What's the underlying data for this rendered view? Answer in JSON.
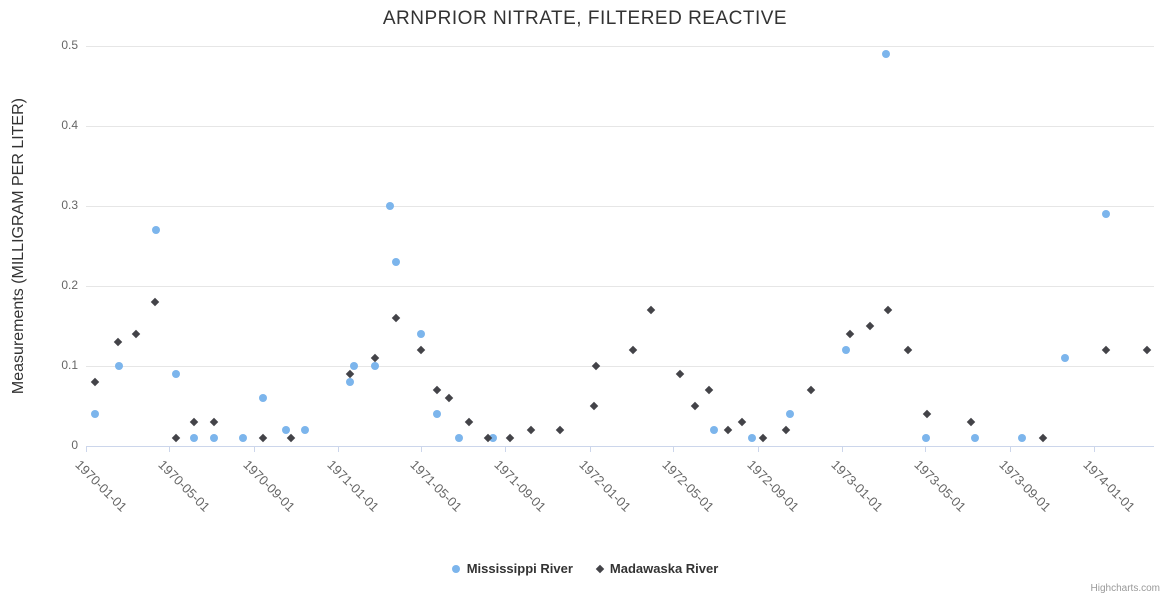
{
  "credits": "Highcharts.com",
  "chart_data": {
    "type": "scatter",
    "title": "ARNPRIOR NITRATE, FILTERED REACTIVE",
    "xlabel": "",
    "ylabel": "Measurements (MILLIGRAM PER LITER)",
    "ylim": [
      0,
      0.5
    ],
    "yticks": [
      0,
      0.1,
      0.2,
      0.3,
      0.4,
      0.5
    ],
    "ytick_labels": [
      "0",
      "0.1",
      "0.2",
      "0.3",
      "0.4",
      "0.5"
    ],
    "xticks": [
      "1970-01-01",
      "1970-05-01",
      "1970-09-01",
      "1971-01-01",
      "1971-05-01",
      "1971-09-01",
      "1972-01-01",
      "1972-05-01",
      "1972-09-01",
      "1973-01-01",
      "1973-05-01",
      "1973-09-01",
      "1974-01-01"
    ],
    "x_range": [
      "1970-01-01",
      "1974-04-01"
    ],
    "grid": true,
    "legend_position": "bottom",
    "series": [
      {
        "name": "Mississippi River",
        "color": "#7cb5ec",
        "marker": "circle",
        "points": [
          [
            "1970-01-14",
            0.04
          ],
          [
            "1970-02-18",
            0.1
          ],
          [
            "1970-04-12",
            0.27
          ],
          [
            "1970-05-11",
            0.09
          ],
          [
            "1970-06-07",
            0.01
          ],
          [
            "1970-07-05",
            0.01
          ],
          [
            "1970-08-17",
            0.01
          ],
          [
            "1970-09-15",
            0.06
          ],
          [
            "1970-10-18",
            0.02
          ],
          [
            "1970-11-14",
            0.02
          ],
          [
            "1971-01-19",
            0.08
          ],
          [
            "1971-01-24",
            0.1
          ],
          [
            "1971-02-24",
            0.1
          ],
          [
            "1971-03-18",
            0.3
          ],
          [
            "1971-03-27",
            0.23
          ],
          [
            "1971-05-01",
            0.14
          ],
          [
            "1971-05-25",
            0.04
          ],
          [
            "1971-06-25",
            0.01
          ],
          [
            "1971-08-14",
            0.01
          ],
          [
            "1972-06-29",
            0.02
          ],
          [
            "1972-08-24",
            0.01
          ],
          [
            "1972-10-18",
            0.04
          ],
          [
            "1973-01-06",
            0.12
          ],
          [
            "1973-03-06",
            0.49
          ],
          [
            "1973-05-03",
            0.01
          ],
          [
            "1973-07-12",
            0.01
          ],
          [
            "1973-09-19",
            0.01
          ],
          [
            "1973-11-20",
            0.11
          ],
          [
            "1974-01-18",
            0.29
          ]
        ]
      },
      {
        "name": "Madawaska River",
        "color": "#434348",
        "marker": "diamond",
        "points": [
          [
            "1970-01-14",
            0.08
          ],
          [
            "1970-02-17",
            0.13
          ],
          [
            "1970-03-15",
            0.14
          ],
          [
            "1970-04-11",
            0.18
          ],
          [
            "1970-05-11",
            0.01
          ],
          [
            "1970-06-07",
            0.03
          ],
          [
            "1970-07-05",
            0.03
          ],
          [
            "1970-09-15",
            0.01
          ],
          [
            "1970-10-25",
            0.01
          ],
          [
            "1971-01-19",
            0.09
          ],
          [
            "1971-02-24",
            0.11
          ],
          [
            "1971-03-26",
            0.16
          ],
          [
            "1971-05-01",
            0.12
          ],
          [
            "1971-05-25",
            0.07
          ],
          [
            "1971-06-11",
            0.06
          ],
          [
            "1971-07-10",
            0.03
          ],
          [
            "1971-08-06",
            0.01
          ],
          [
            "1971-09-07",
            0.01
          ],
          [
            "1971-10-08",
            0.02
          ],
          [
            "1971-11-19",
            0.02
          ],
          [
            "1972-01-07",
            0.05
          ],
          [
            "1972-01-10",
            0.1
          ],
          [
            "1972-03-04",
            0.12
          ],
          [
            "1972-03-30",
            0.17
          ],
          [
            "1972-05-11",
            0.09
          ],
          [
            "1972-06-01",
            0.05
          ],
          [
            "1972-06-22",
            0.07
          ],
          [
            "1972-07-19",
            0.02
          ],
          [
            "1972-08-09",
            0.03
          ],
          [
            "1972-09-08",
            0.01
          ],
          [
            "1972-10-12",
            0.02
          ],
          [
            "1972-11-17",
            0.07
          ],
          [
            "1973-01-12",
            0.14
          ],
          [
            "1973-02-10",
            0.15
          ],
          [
            "1973-03-08",
            0.17
          ],
          [
            "1973-04-06",
            0.12
          ],
          [
            "1973-05-04",
            0.04
          ],
          [
            "1973-07-07",
            0.03
          ],
          [
            "1973-10-19",
            0.01
          ],
          [
            "1974-01-18",
            0.12
          ],
          [
            "1974-03-19",
            0.12
          ]
        ]
      }
    ]
  }
}
